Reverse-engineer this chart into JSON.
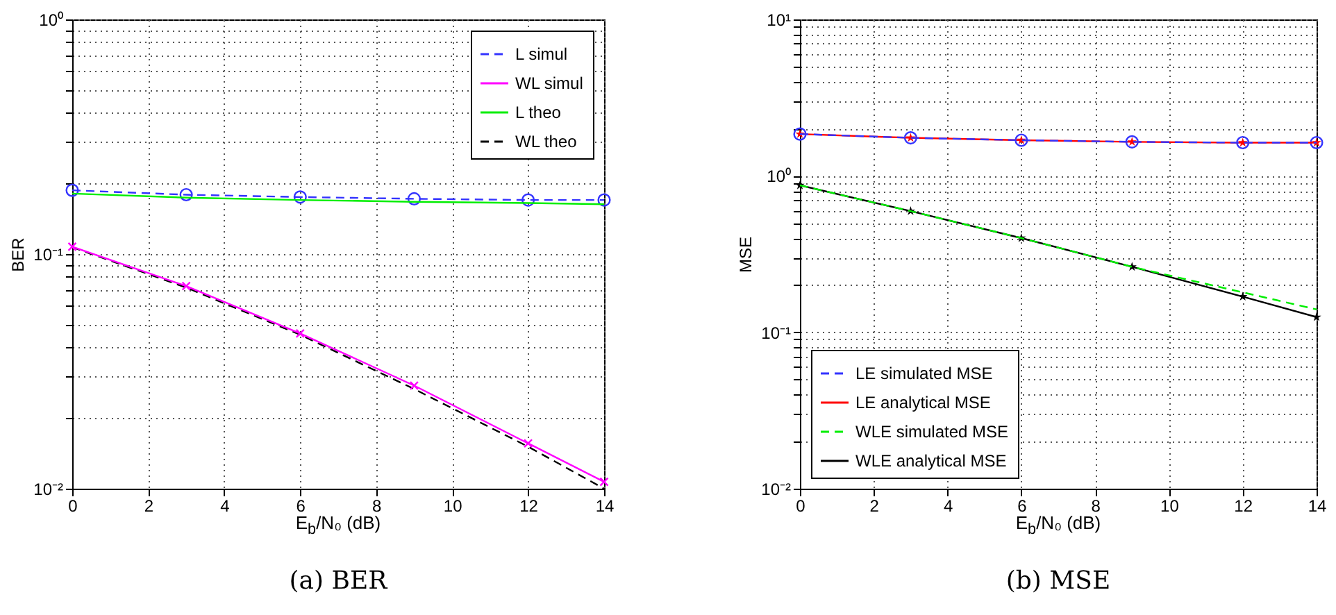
{
  "chart_data": [
    {
      "type": "line",
      "title": "(a) BER",
      "xlabel": "E$_{b}$/N₀ (dB)",
      "ylabel": "BER",
      "x": [
        0,
        3,
        6,
        9,
        12,
        14
      ],
      "series": [
        {
          "name": "L simul",
          "color": "#3333ff",
          "line_style": "dashed",
          "marker": "circle",
          "values": [
            0.187,
            0.179,
            0.175,
            0.172,
            0.17,
            0.17
          ]
        },
        {
          "name": "WL simul",
          "color": "#ff00ff",
          "line_style": "solid",
          "marker": "cross",
          "values": [
            0.1075,
            0.073,
            0.0459,
            0.0275,
            0.0156,
            0.0107
          ]
        },
        {
          "name": "L theo",
          "color": "#00ee00",
          "line_style": "solid",
          "marker": "none",
          "values": [
            0.181,
            0.174,
            0.17,
            0.167,
            0.165,
            0.163
          ]
        },
        {
          "name": "WL theo",
          "color": "#000000",
          "line_style": "dashed",
          "marker": "none",
          "values": [
            0.107,
            0.072,
            0.0453,
            0.0266,
            0.0151,
            0.01
          ]
        }
      ],
      "xlim": [
        0,
        14
      ],
      "xticks": [
        0,
        2,
        4,
        6,
        8,
        10,
        12,
        14
      ],
      "ylim": [
        0.01,
        1
      ],
      "yticks": [
        {
          "value": 0.01,
          "label": "10⁻²"
        },
        {
          "value": 0.02,
          "label": null
        },
        {
          "value": 0.03,
          "label": null
        },
        {
          "value": 0.04,
          "label": null
        },
        {
          "value": 0.05,
          "label": null
        },
        {
          "value": 0.06,
          "label": null
        },
        {
          "value": 0.07,
          "label": null
        },
        {
          "value": 0.08,
          "label": null
        },
        {
          "value": 0.09,
          "label": null
        },
        {
          "value": 0.1,
          "label": "10⁻¹"
        },
        {
          "value": 0.2,
          "label": null
        },
        {
          "value": 0.3,
          "label": null
        },
        {
          "value": 0.4,
          "label": null
        },
        {
          "value": 0.5,
          "label": null
        },
        {
          "value": 0.6,
          "label": null
        },
        {
          "value": 0.7,
          "label": null
        },
        {
          "value": 0.8,
          "label": null
        },
        {
          "value": 0.9,
          "label": null
        },
        {
          "value": 1,
          "label": "10⁰"
        }
      ],
      "log": true,
      "grid": true,
      "legend": "top right"
    },
    {
      "type": "line",
      "title": "(b) MSE",
      "xlabel": "E$_{b}$/N₀ (dB)",
      "ylabel": "MSE",
      "x": [
        0,
        3,
        6,
        9,
        12,
        14
      ],
      "series": [
        {
          "name": "LE simulated MSE",
          "color": "#3333ff",
          "line_style": "dashed",
          "marker": "circle",
          "values": [
            1.85,
            1.75,
            1.69,
            1.65,
            1.63,
            1.63
          ]
        },
        {
          "name": "LE analytical MSE",
          "color": "#ff0000",
          "line_style": "solid",
          "marker": "star",
          "values": [
            1.85,
            1.75,
            1.69,
            1.65,
            1.63,
            1.63
          ]
        },
        {
          "name": "WLE simulated MSE",
          "color": "#00ee00",
          "line_style": "dashed",
          "marker": "none",
          "values": [
            0.87,
            0.595,
            0.4,
            0.262,
            0.18,
            0.14
          ]
        },
        {
          "name": "WLE analytical MSE",
          "color": "#000000",
          "line_style": "solid",
          "marker": "star",
          "values": [
            0.87,
            0.595,
            0.4,
            0.262,
            0.169,
            0.125
          ]
        }
      ],
      "xlim": [
        0,
        14
      ],
      "xticks": [
        0,
        2,
        4,
        6,
        8,
        10,
        12,
        14
      ],
      "ylim": [
        0.01,
        10
      ],
      "yticks": [
        {
          "value": 0.01,
          "label": "10⁻²"
        },
        {
          "value": 0.02,
          "label": null
        },
        {
          "value": 0.03,
          "label": null
        },
        {
          "value": 0.04,
          "label": null
        },
        {
          "value": 0.05,
          "label": null
        },
        {
          "value": 0.06,
          "label": null
        },
        {
          "value": 0.07,
          "label": null
        },
        {
          "value": 0.08,
          "label": null
        },
        {
          "value": 0.09,
          "label": null
        },
        {
          "value": 0.1,
          "label": "10⁻¹"
        },
        {
          "value": 0.2,
          "label": null
        },
        {
          "value": 0.3,
          "label": null
        },
        {
          "value": 0.4,
          "label": null
        },
        {
          "value": 0.5,
          "label": null
        },
        {
          "value": 0.6,
          "label": null
        },
        {
          "value": 0.7,
          "label": null
        },
        {
          "value": 0.8,
          "label": null
        },
        {
          "value": 0.9,
          "label": null
        },
        {
          "value": 1,
          "label": "10⁰"
        },
        {
          "value": 2,
          "label": null
        },
        {
          "value": 3,
          "label": null
        },
        {
          "value": 4,
          "label": null
        },
        {
          "value": 5,
          "label": null
        },
        {
          "value": 6,
          "label": null
        },
        {
          "value": 7,
          "label": null
        },
        {
          "value": 8,
          "label": null
        },
        {
          "value": 9,
          "label": null
        },
        {
          "value": 10,
          "label": "10¹"
        }
      ],
      "log": true,
      "grid": true,
      "legend": "bottom left"
    }
  ]
}
